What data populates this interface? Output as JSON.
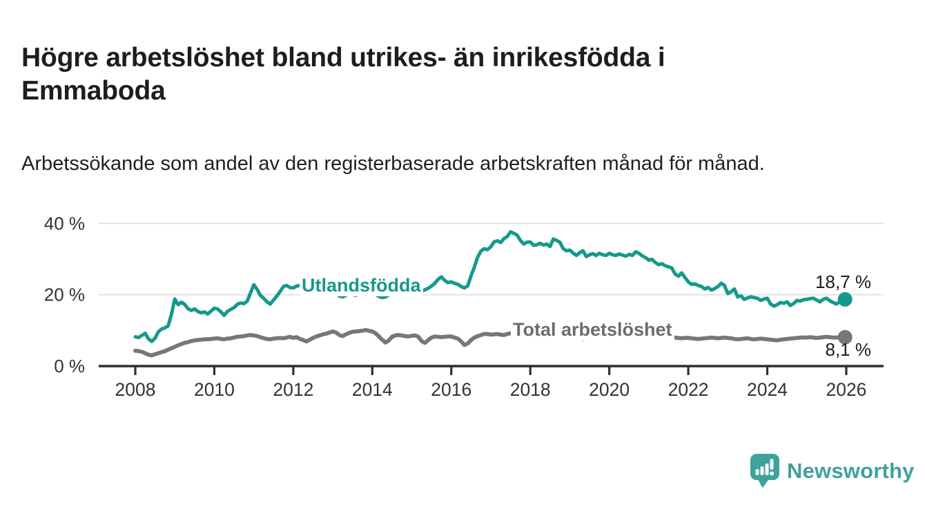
{
  "header": {
    "title": "Högre arbetslöshet bland utrikes- än inrikesfödda i Emmaboda",
    "subtitle": "Arbetssökande som andel av den registerbaserade arbetskraften månad för månad."
  },
  "footer": {
    "brand": "Newsworthy"
  },
  "colors": {
    "accent_teal": "#15998a",
    "line_gray": "#777777",
    "label_gray": "#6b6b6b",
    "axis": "#2e2e2e",
    "grid": "#dcdcdc",
    "tick_text": "#333333",
    "logo_teal": "#3fa29b"
  },
  "chart_data": {
    "type": "line",
    "title": "Högre arbetslöshet bland utrikes- än inrikesfödda i Emmaboda",
    "subtitle": "Arbetssökande som andel av den registerbaserade arbetskraften månad för månad.",
    "unit": "%",
    "grid": true,
    "legend": "inline-labels",
    "x_axis": {
      "ticks": [
        2008,
        2010,
        2012,
        2014,
        2016,
        2018,
        2020,
        2022,
        2024,
        2026
      ]
    },
    "y_axis": {
      "max": 40,
      "ticks": [
        {
          "value": 0,
          "label": "0 %"
        },
        {
          "value": 20,
          "label": "20 %"
        },
        {
          "value": 40,
          "label": "40 %"
        }
      ]
    },
    "frequency": "monthly",
    "start_year": 2008,
    "series": [
      {
        "name": "Utlandsfödda",
        "color": "#15998a",
        "end_label": "18,7 %",
        "last_value": 18.7,
        "end_dot": true,
        "values": [
          8.2,
          8.0,
          8.6,
          9.2,
          7.6,
          6.9,
          7.8,
          9.6,
          10.4,
          10.7,
          11.3,
          14.6,
          18.8,
          17.2,
          17.9,
          17.3,
          16.1,
          15.6,
          16.0,
          15.3,
          14.9,
          15.2,
          14.6,
          15.4,
          16.2,
          16.0,
          15.2,
          14.2,
          15.3,
          15.9,
          16.4,
          17.3,
          17.7,
          17.5,
          18.2,
          20.5,
          22.8,
          21.5,
          19.8,
          19.0,
          18.0,
          17.4,
          18.5,
          19.6,
          20.9,
          22.3,
          22.6,
          22.0,
          21.9,
          22.4,
          22.6,
          21.8,
          21.0,
          20.4,
          20.8,
          21.5,
          21.9,
          21.6,
          21.2,
          21.0,
          20.8,
          20.4,
          19.6,
          19.4,
          19.8,
          20.5,
          20.0,
          19.8,
          20.3,
          20.8,
          21.0,
          20.6,
          20.4,
          20.0,
          19.5,
          19.2,
          19.4,
          19.9,
          20.6,
          21.0,
          21.3,
          21.0,
          20.7,
          20.9,
          21.2,
          21.0,
          20.6,
          20.9,
          21.4,
          21.8,
          22.4,
          23.2,
          24.3,
          25.0,
          24.0,
          23.4,
          23.6,
          23.2,
          22.9,
          22.3,
          21.9,
          22.5,
          25.3,
          27.7,
          30.5,
          32.2,
          32.9,
          32.6,
          33.4,
          34.8,
          35.1,
          34.6,
          35.7,
          36.3,
          37.6,
          37.2,
          36.7,
          35.2,
          34.2,
          34.7,
          34.8,
          33.8,
          34.0,
          34.4,
          33.9,
          34.2,
          33.5,
          35.6,
          35.2,
          34.7,
          32.9,
          32.3,
          32.5,
          31.7,
          31.0,
          31.8,
          32.3,
          30.7,
          31.2,
          31.5,
          31.0,
          31.6,
          31.2,
          31.0,
          31.6,
          31.2,
          31.0,
          31.4,
          31.1,
          30.8,
          31.3,
          31.0,
          32.0,
          31.6,
          30.9,
          30.4,
          29.7,
          29.9,
          29.0,
          28.4,
          28.7,
          28.1,
          27.8,
          27.5,
          25.8,
          25.2,
          26.1,
          24.8,
          23.6,
          22.9,
          23.0,
          22.6,
          22.3,
          21.6,
          22.0,
          21.3,
          21.7,
          22.3,
          23.2,
          22.6,
          20.3,
          20.8,
          21.6,
          19.4,
          19.7,
          18.7,
          19.1,
          19.4,
          19.2,
          19.0,
          18.4,
          18.8,
          19.0,
          17.4,
          16.8,
          17.2,
          17.8,
          17.6,
          18.0,
          17.0,
          17.5,
          18.4,
          18.2,
          18.6,
          18.7,
          18.9,
          19.0,
          18.5,
          18.0,
          18.7,
          19.0,
          18.3,
          17.8,
          17.4,
          18.0,
          18.7
        ]
      },
      {
        "name": "Total arbetslöshet",
        "color": "#777777",
        "end_label": "8,1 %",
        "last_value": 8.1,
        "end_dot": true,
        "values": [
          4.3,
          4.2,
          4.0,
          3.6,
          3.2,
          3.0,
          3.3,
          3.6,
          3.9,
          4.2,
          4.6,
          5.0,
          5.4,
          5.8,
          6.2,
          6.5,
          6.7,
          7.0,
          7.2,
          7.3,
          7.4,
          7.5,
          7.5,
          7.6,
          7.7,
          7.8,
          7.6,
          7.5,
          7.7,
          7.8,
          8.0,
          8.2,
          8.3,
          8.4,
          8.6,
          8.7,
          8.6,
          8.4,
          8.1,
          7.8,
          7.6,
          7.5,
          7.7,
          7.8,
          7.9,
          7.8,
          8.0,
          8.2,
          7.9,
          8.1,
          7.6,
          7.3,
          6.9,
          7.4,
          7.9,
          8.3,
          8.6,
          8.9,
          9.1,
          9.4,
          9.7,
          9.4,
          8.7,
          8.4,
          8.9,
          9.3,
          9.6,
          9.7,
          9.8,
          9.9,
          10.1,
          9.9,
          9.7,
          9.2,
          8.3,
          7.4,
          6.6,
          7.2,
          8.2,
          8.6,
          8.7,
          8.6,
          8.4,
          8.3,
          8.5,
          8.6,
          8.2,
          7.0,
          6.5,
          7.3,
          8.0,
          8.3,
          8.2,
          8.1,
          8.2,
          8.3,
          8.3,
          8.0,
          7.7,
          6.9,
          5.9,
          6.3,
          7.3,
          8.0,
          8.4,
          8.7,
          9.0,
          9.0,
          8.8,
          8.9,
          9.0,
          8.8,
          8.7,
          9.0,
          9.2,
          9.3,
          9.3,
          9.2,
          9.1,
          9.0,
          8.9,
          8.8,
          8.5,
          8.2,
          8.0,
          8.3,
          8.6,
          8.8,
          8.7,
          8.6,
          8.5,
          8.6,
          8.5,
          8.3,
          8.0,
          7.8,
          7.6,
          7.9,
          8.2,
          8.3,
          8.2,
          8.1,
          8.2,
          8.3,
          8.5,
          8.6,
          8.9,
          9.4,
          9.6,
          9.8,
          9.9,
          9.7,
          9.5,
          9.3,
          9.1,
          9.0,
          8.9,
          8.8,
          8.6,
          8.4,
          8.2,
          8.1,
          8.2,
          8.1,
          8.0,
          7.9,
          7.8,
          7.9,
          7.9,
          7.8,
          7.7,
          7.6,
          7.7,
          7.8,
          7.9,
          8.0,
          7.9,
          7.8,
          7.9,
          8.0,
          7.9,
          7.8,
          7.6,
          7.5,
          7.6,
          7.7,
          7.8,
          7.6,
          7.5,
          7.6,
          7.7,
          7.6,
          7.5,
          7.4,
          7.3,
          7.2,
          7.4,
          7.5,
          7.6,
          7.7,
          7.8,
          7.9,
          8.0,
          8.0,
          8.0,
          8.1,
          8.0,
          7.9,
          8.0,
          8.1,
          8.2,
          8.1,
          8.0,
          8.0,
          8.1,
          8.1
        ]
      }
    ]
  }
}
